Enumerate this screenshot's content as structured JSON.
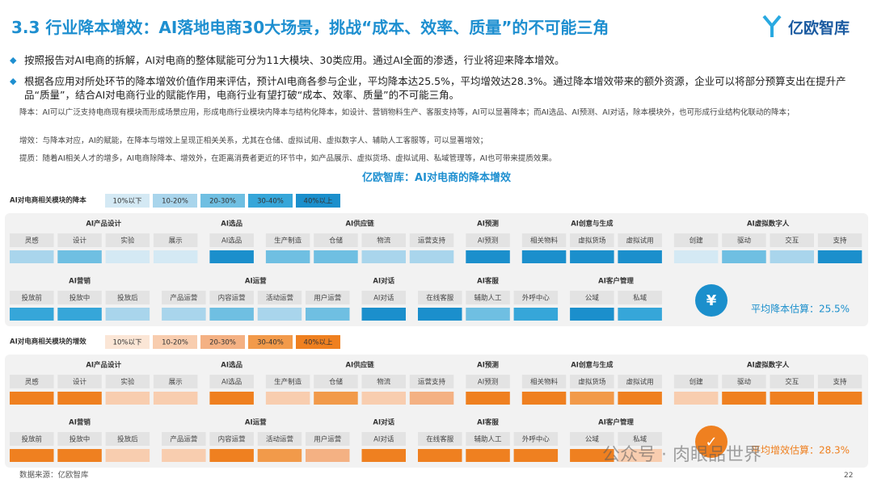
{
  "header": {
    "title": "3.3 行业降本增效：AI落地电商30大场景，挑战“成本、效率、质量”的不可能三角",
    "logo": "亿欧智库"
  },
  "bullets": [
    "按照报告对AI电商的拆解，AI对电商的整体赋能可分为11大模块、30类应用。通过AI全面的渗透，行业将迎来降本增效。",
    "根据各应用对所处环节的降本增效价值作用来评估，预计AI电商各参与企业，平均降本达25.5%，平均增效达28.3%。通过降本增效带来的额外资源，企业可以将部分预算支出在提升产品“质量”，结合AI对电商行业的赋能作用，电商行业有望打破“成本、效率、质量”的不可能三角。"
  ],
  "notes": [
    "降本：AI可以广泛支持电商现有模块而形成场景应用，形成电商行业模块内降本与结构化降本，如设计、营销物料生产、客服支持等，AI可以显著降本；而AI选品、AI预测、AI对话，除本模块外，也可形成行业结构化联动的降本；",
    "增效：与降本对应，AI的赋能，在降本与增效上呈现正相关关系，尤其在仓储、虚拟试用、虚拟数字人、辅助人工客服等，可以显著增效；",
    "提质：随着AI相关人才的增多，AI电商除降本、增效外，在距离消费者更近的环节中，如产品展示、虚拟货场、虚拟试用、私域管理等，AI也可带来提质效果。"
  ],
  "figure_title": "亿欧智库：AI对电商的降本增效",
  "sections": [
    {
      "legend_title": "AI对电商相关模块的降本",
      "legend": [
        {
          "label": "10%以下",
          "color": "#d4e9f4"
        },
        {
          "label": "10-20%",
          "color": "#a9d5ec"
        },
        {
          "label": "20-30%",
          "color": "#6fbfe2"
        },
        {
          "label": "30-40%",
          "color": "#36a6d9"
        },
        {
          "label": "40%以上",
          "color": "#1b8fcc"
        }
      ],
      "rows": [
        [
          {
            "name": "AI产品设计",
            "items": [
              {
                "label": "灵感",
                "level": 1
              },
              {
                "label": "设计",
                "level": 2
              },
              {
                "label": "实验",
                "level": 0
              },
              {
                "label": "展示",
                "level": 0
              }
            ]
          },
          {
            "name": "AI选品",
            "items": [
              {
                "label": "AI选品",
                "level": 4
              }
            ]
          },
          {
            "name": "AI供应链",
            "items": [
              {
                "label": "生产制造",
                "level": 2
              },
              {
                "label": "仓储",
                "level": 2
              },
              {
                "label": "物流",
                "level": 1
              },
              {
                "label": "运营支持",
                "level": 1
              }
            ]
          },
          {
            "name": "AI预测",
            "items": [
              {
                "label": "AI预测",
                "level": 4
              }
            ]
          },
          {
            "name": "AI创意与生成",
            "items": [
              {
                "label": "相关物料",
                "level": 4
              },
              {
                "label": "虚拟货场",
                "level": 4
              },
              {
                "label": "虚拟试用",
                "level": 4
              }
            ]
          },
          {
            "name": "AI虚拟数字人",
            "items": [
              {
                "label": "创建",
                "level": 0
              },
              {
                "label": "驱动",
                "level": 2
              },
              {
                "label": "交互",
                "level": 1
              },
              {
                "label": "支持",
                "level": 4
              }
            ]
          }
        ],
        [
          {
            "name": "AI营销",
            "items": [
              {
                "label": "投放前",
                "level": 3
              },
              {
                "label": "投放中",
                "level": 3
              },
              {
                "label": "投放后",
                "level": 1
              }
            ]
          },
          {
            "name": "AI运营",
            "items": [
              {
                "label": "产品运营",
                "level": 1
              },
              {
                "label": "内容运营",
                "level": 2
              },
              {
                "label": "活动运营",
                "level": 1
              },
              {
                "label": "用户运营",
                "level": 2
              }
            ]
          },
          {
            "name": "AI对话",
            "items": [
              {
                "label": "AI对话",
                "level": 4
              }
            ]
          },
          {
            "name": "AI客服",
            "items": [
              {
                "label": "在线客服",
                "level": 4
              },
              {
                "label": "辅助人工",
                "level": 2
              },
              {
                "label": "外呼中心",
                "level": 3
              }
            ]
          },
          {
            "name": "AI客户管理",
            "items": [
              {
                "label": "公域",
                "level": 4
              },
              {
                "label": "私域",
                "level": 3
              }
            ]
          }
        ]
      ],
      "summary": "平均降本估算：25.5%",
      "accent": "#1b8fcc",
      "icon": "¥"
    },
    {
      "legend_title": "AI对电商相关模块的增效",
      "legend": [
        {
          "label": "10%以下",
          "color": "#fbe6d6"
        },
        {
          "label": "10-20%",
          "color": "#f8cdaf"
        },
        {
          "label": "20-30%",
          "color": "#f4b183"
        },
        {
          "label": "30-40%",
          "color": "#f29a4a"
        },
        {
          "label": "40%以上",
          "color": "#ef8020"
        }
      ],
      "rows": [
        [
          {
            "name": "AI产品设计",
            "items": [
              {
                "label": "灵感",
                "level": 4
              },
              {
                "label": "设计",
                "level": 4
              },
              {
                "label": "实验",
                "level": 1
              },
              {
                "label": "展示",
                "level": 1
              }
            ]
          },
          {
            "name": "AI选品",
            "items": [
              {
                "label": "AI选品",
                "level": 4
              }
            ]
          },
          {
            "name": "AI供应链",
            "items": [
              {
                "label": "生产制造",
                "level": 1
              },
              {
                "label": "仓储",
                "level": 3
              },
              {
                "label": "物流",
                "level": 1
              },
              {
                "label": "运营支持",
                "level": 2
              }
            ]
          },
          {
            "name": "AI预测",
            "items": [
              {
                "label": "AI预测",
                "level": 4
              }
            ]
          },
          {
            "name": "AI创意与生成",
            "items": [
              {
                "label": "相关物料",
                "level": 4
              },
              {
                "label": "虚拟货场",
                "level": 3
              },
              {
                "label": "虚拟试用",
                "level": 4
              }
            ]
          },
          {
            "name": "AI虚拟数字人",
            "items": [
              {
                "label": "创建",
                "level": 1
              },
              {
                "label": "驱动",
                "level": 4
              },
              {
                "label": "交互",
                "level": 4
              },
              {
                "label": "支持",
                "level": 4
              }
            ]
          }
        ],
        [
          {
            "name": "AI营销",
            "items": [
              {
                "label": "投放前",
                "level": 4
              },
              {
                "label": "投放中",
                "level": 4
              },
              {
                "label": "投放后",
                "level": 1
              }
            ]
          },
          {
            "name": "AI运营",
            "items": [
              {
                "label": "产品运营",
                "level": 1
              },
              {
                "label": "内容运营",
                "level": 4
              },
              {
                "label": "活动运营",
                "level": 3
              },
              {
                "label": "用户运营",
                "level": 2
              }
            ]
          },
          {
            "name": "AI对话",
            "items": [
              {
                "label": "AI对话",
                "level": 4
              }
            ]
          },
          {
            "name": "AI客服",
            "items": [
              {
                "label": "在线客服",
                "level": 4
              },
              {
                "label": "辅助人工",
                "level": 4
              },
              {
                "label": "外呼中心",
                "level": 4
              }
            ]
          },
          {
            "name": "AI客户管理",
            "items": [
              {
                "label": "公域",
                "level": 4
              },
              {
                "label": "私域",
                "level": 1
              }
            ]
          }
        ]
      ],
      "summary": "平均增效估算：28.3%",
      "accent": "#ef8020",
      "icon": "✓"
    }
  ],
  "watermark": "公众号 · 肉眼品世界",
  "source": "数据来源：亿欧智库",
  "page_number": "22"
}
